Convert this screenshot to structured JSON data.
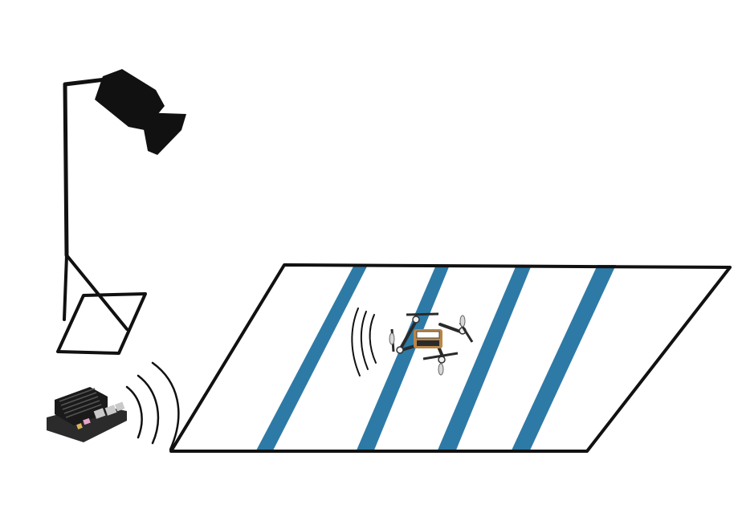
{
  "scene": {
    "elements": [
      {
        "id": "camera",
        "icon": "camera-on-tripod-icon"
      },
      {
        "id": "floor",
        "icon": "striped-floor-mat-icon",
        "stripe_count": 4
      },
      {
        "id": "drone",
        "icon": "quadcopter-drone-icon"
      },
      {
        "id": "computer",
        "icon": "embedded-board-icon"
      },
      {
        "id": "wireless-link-board",
        "icon": "wireless-signal-icon"
      },
      {
        "id": "wireless-link-drone",
        "icon": "wireless-signal-icon"
      }
    ]
  },
  "colors": {
    "ink": "#111111",
    "stripe": "#2e7aa6",
    "background": "#ffffff",
    "board": "#2b2b2b",
    "heatsink": "#1a1a1a",
    "port": "#c9c9c9",
    "connector_pink": "#e8a5c8",
    "connector_gold": "#d8b45a",
    "drone_body": "#2a2a2a",
    "drone_board": "#b8864a",
    "propeller": "#d8d8d8"
  }
}
